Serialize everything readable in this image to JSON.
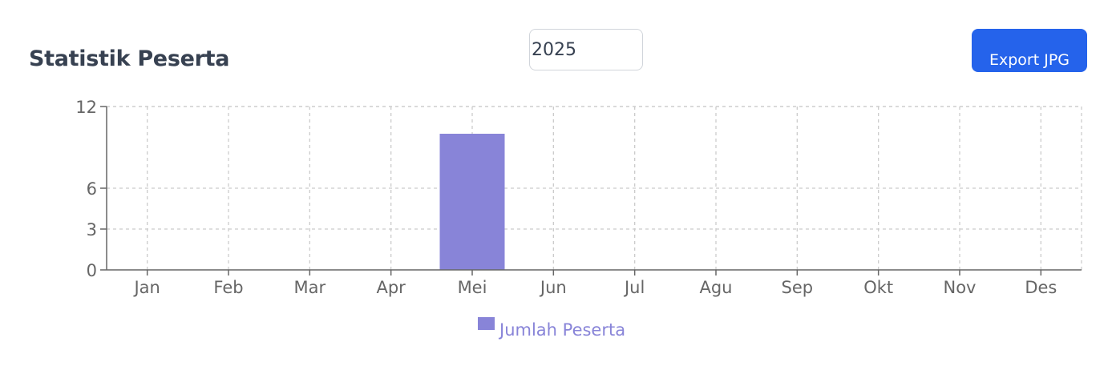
{
  "header": {
    "title": "Statistik Peserta",
    "year_value": "2025",
    "export_label": "Export JPG"
  },
  "colors": {
    "bar": "#8884d8",
    "button": "#2563eb",
    "grid": "#cccccc",
    "axis": "#666666"
  },
  "chart_data": {
    "type": "bar",
    "categories": [
      "Jan",
      "Feb",
      "Mar",
      "Apr",
      "Mei",
      "Jun",
      "Jul",
      "Agu",
      "Sep",
      "Okt",
      "Nov",
      "Des"
    ],
    "series": [
      {
        "name": "Jumlah Peserta",
        "values": [
          0,
          0,
          0,
          0,
          10,
          0,
          0,
          0,
          0,
          0,
          0,
          0
        ]
      }
    ],
    "yticks": [
      0,
      3,
      6,
      12
    ],
    "ylim": [
      0,
      12
    ],
    "grid": true,
    "legend": "bottom-center",
    "title": "",
    "xlabel": "",
    "ylabel": ""
  }
}
